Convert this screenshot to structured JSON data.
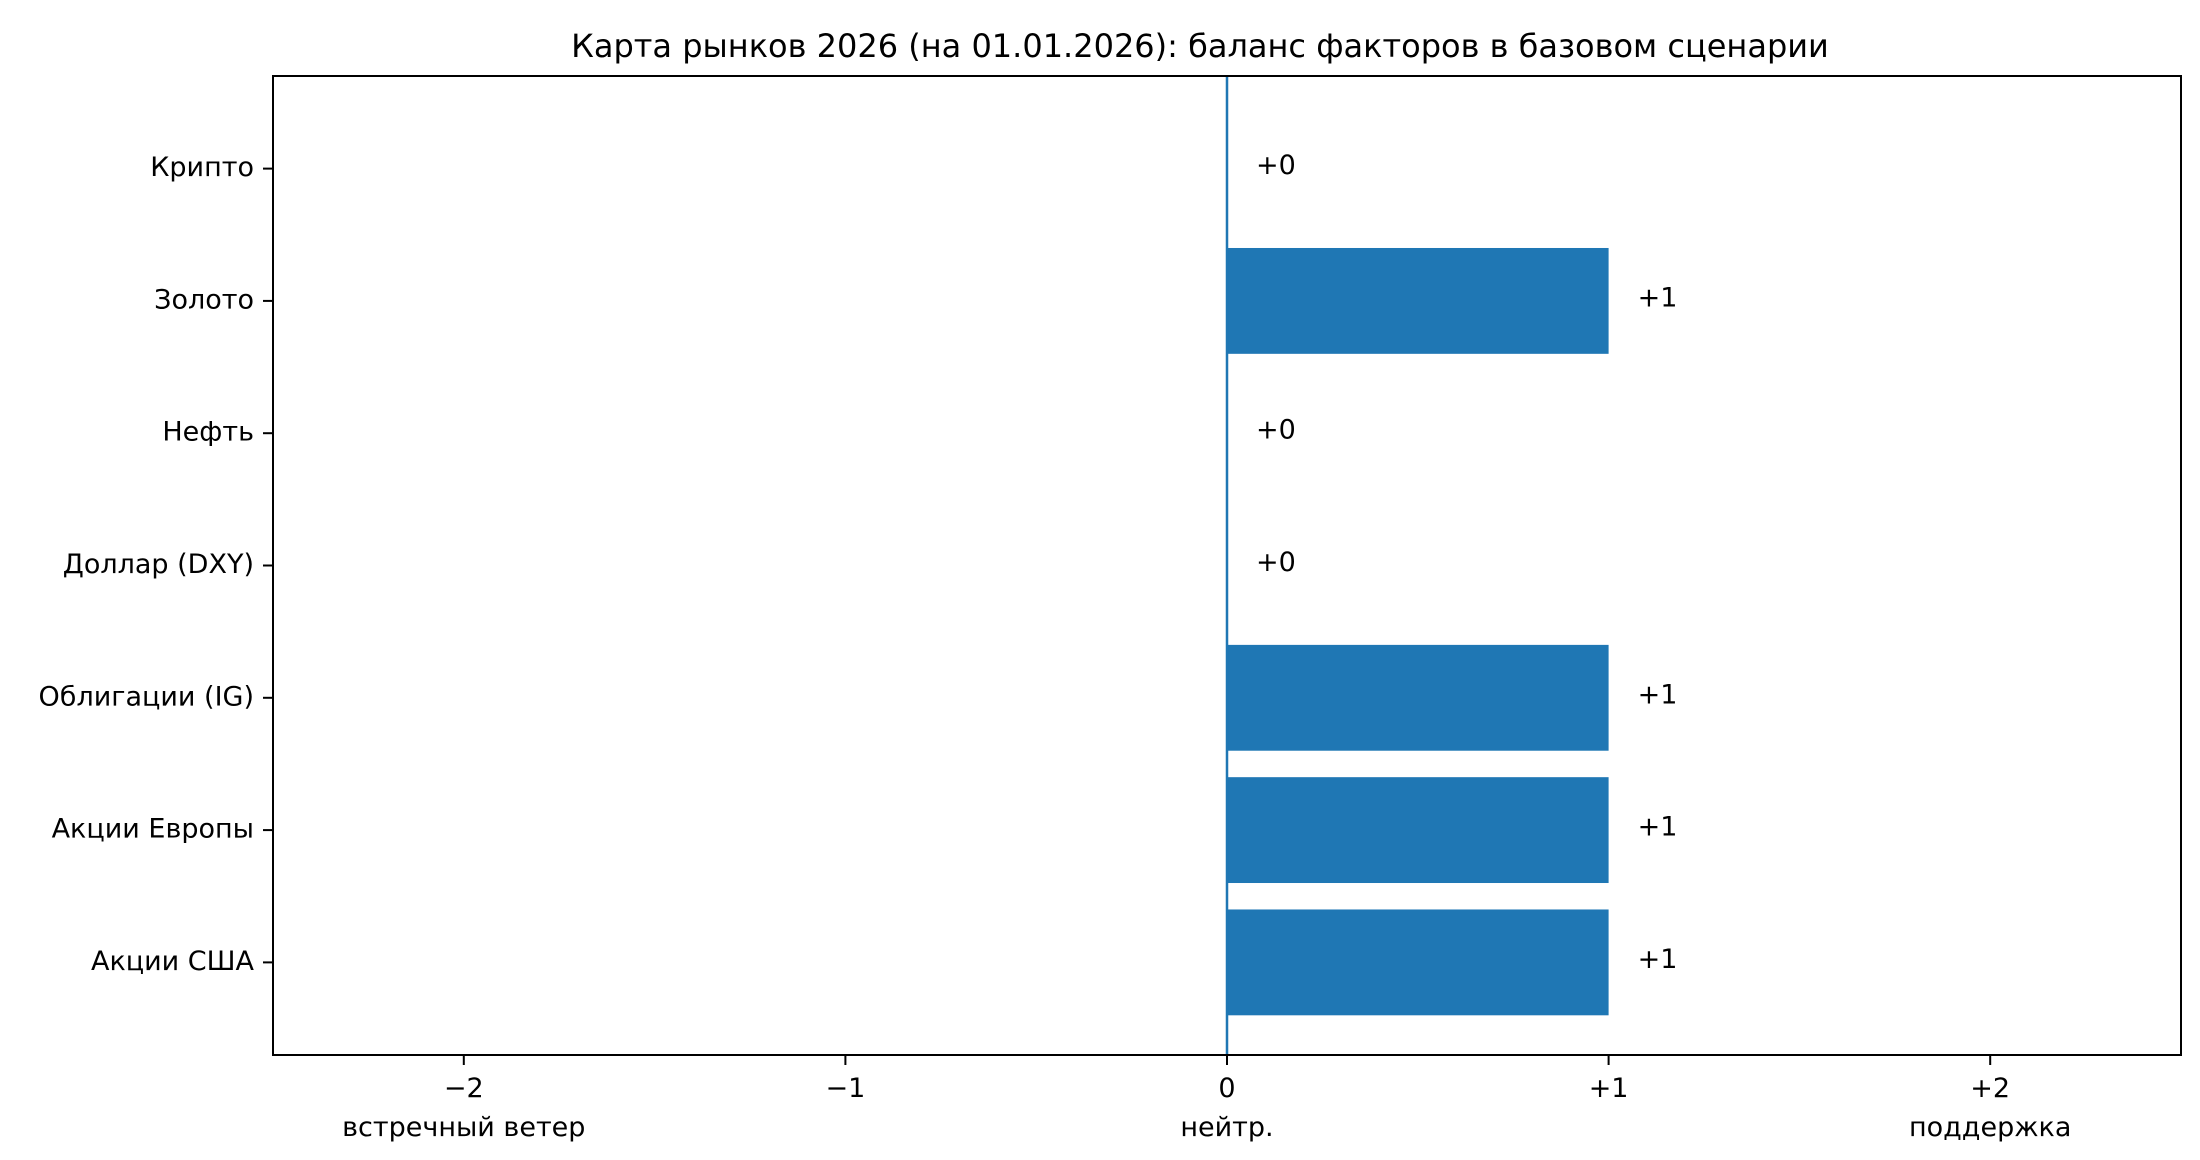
{
  "chart_data": {
    "type": "bar",
    "orientation": "horizontal",
    "title": "Карта рынков 2026 (на 01.01.2026): баланс факторов в базовом сценарии",
    "xlabel": "",
    "ylabel": "",
    "xlim": [
      -2.5,
      2.5
    ],
    "categories": [
      "Акции США",
      "Акции Европы",
      "Облигации (IG)",
      "Доллар (DXY)",
      "Нефть",
      "Золото",
      "Крипто"
    ],
    "values": [
      1,
      1,
      1,
      0,
      0,
      1,
      0
    ],
    "data_labels": [
      "+1",
      "+1",
      "+1",
      "+0",
      "+0",
      "+1",
      "+0"
    ],
    "x_ticks": [
      {
        "value": -2,
        "label": "−2",
        "sublabel": "встречный ветер"
      },
      {
        "value": -1,
        "label": "−1",
        "sublabel": ""
      },
      {
        "value": 0,
        "label": "0",
        "sublabel": "нейтр."
      },
      {
        "value": 1,
        "label": "+1",
        "sublabel": ""
      },
      {
        "value": 2,
        "label": "+2",
        "sublabel": "поддержка"
      }
    ],
    "reference_line": 0,
    "grid": false,
    "legend": "none",
    "colors": {
      "bar": "#1f77b4",
      "zero_line": "#1f77b4",
      "axes": "#000000"
    }
  }
}
